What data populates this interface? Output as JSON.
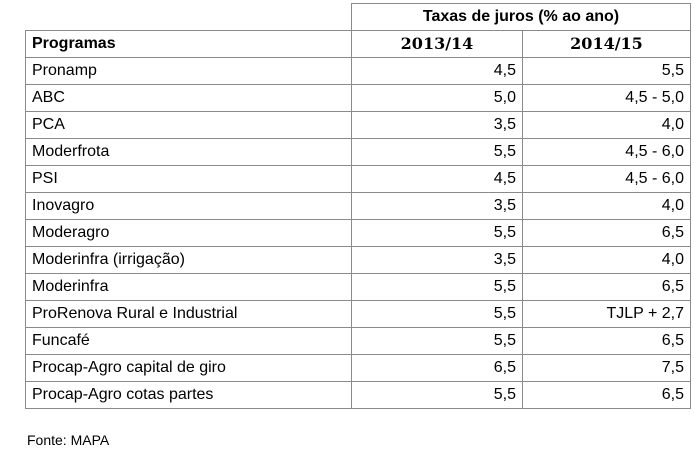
{
  "table": {
    "group_header": "Taxas de juros (% ao ano)",
    "columns": [
      "Programas",
      "2013/14",
      "2014/15"
    ],
    "rows": [
      {
        "program": "Pronamp",
        "y2013": "4,5",
        "y2014": "5,5"
      },
      {
        "program": "ABC",
        "y2013": "5,0",
        "y2014": "4,5 - 5,0"
      },
      {
        "program": "PCA",
        "y2013": "3,5",
        "y2014": "4,0"
      },
      {
        "program": "Moderfrota",
        "y2013": "5,5",
        "y2014": "4,5 - 6,0"
      },
      {
        "program": "PSI",
        "y2013": "4,5",
        "y2014": "4,5 - 6,0"
      },
      {
        "program": "Inovagro",
        "y2013": "3,5",
        "y2014": "4,0"
      },
      {
        "program": "Moderagro",
        "y2013": "5,5",
        "y2014": "6,5"
      },
      {
        "program": "Moderinfra (irrigação)",
        "y2013": "3,5",
        "y2014": "4,0"
      },
      {
        "program": "Moderinfra",
        "y2013": "5,5",
        "y2014": "6,5"
      },
      {
        "program": "ProRenova Rural e Industrial",
        "y2013": "5,5",
        "y2014": "TJLP + 2,7"
      },
      {
        "program": "Funcafé",
        "y2013": "5,5",
        "y2014": "6,5"
      },
      {
        "program": "Procap-Agro capital de giro",
        "y2013": "6,5",
        "y2014": "7,5"
      },
      {
        "program": "Procap-Agro cotas partes",
        "y2013": "5,5",
        "y2014": "6,5"
      }
    ]
  },
  "source": "Fonte:  MAPA"
}
